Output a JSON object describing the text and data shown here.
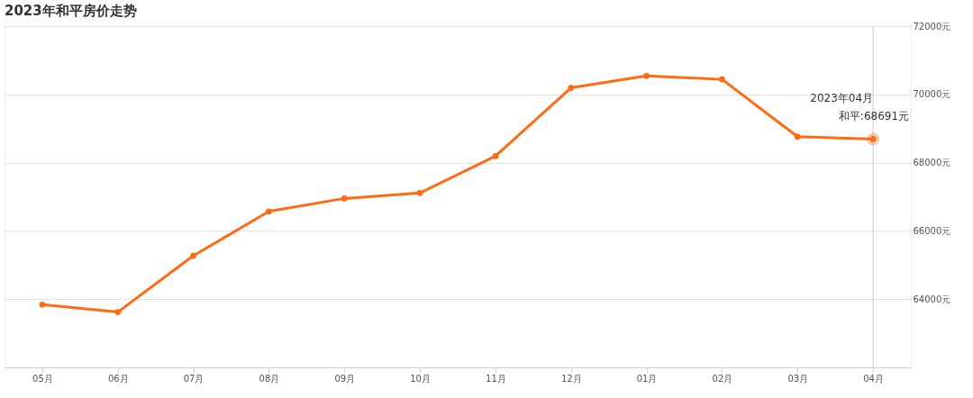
{
  "chart_data": {
    "type": "line",
    "title": "2023年和平房价走势",
    "categories": [
      "05月",
      "06月",
      "07月",
      "08月",
      "09月",
      "10月",
      "11月",
      "12月",
      "01月",
      "02月",
      "03月",
      "04月"
    ],
    "series": [
      {
        "color": "#ff6a13",
        "values": [
          63840,
          63620,
          65270,
          66570,
          66950,
          67110,
          68190,
          70190,
          70540,
          70440,
          68760,
          68691
        ]
      }
    ],
    "ylim": [
      62000,
      72000
    ],
    "yticks": [
      {
        "value": 64000,
        "label": "64000元"
      },
      {
        "value": 66000,
        "label": "66000元"
      },
      {
        "value": 68000,
        "label": "68000元"
      },
      {
        "value": 70000,
        "label": "70000元"
      },
      {
        "value": 72000,
        "label": "72000元"
      }
    ],
    "grid": "y",
    "marker": "circle",
    "line_style": "solid",
    "ref_lines": [
      {
        "axis": "x",
        "value": "04月",
        "color": "#cccccc"
      }
    ],
    "annotations": [
      "2023年04月",
      {
        "text": "和平:68691元",
        "x": "04月",
        "y": 68691
      }
    ]
  }
}
